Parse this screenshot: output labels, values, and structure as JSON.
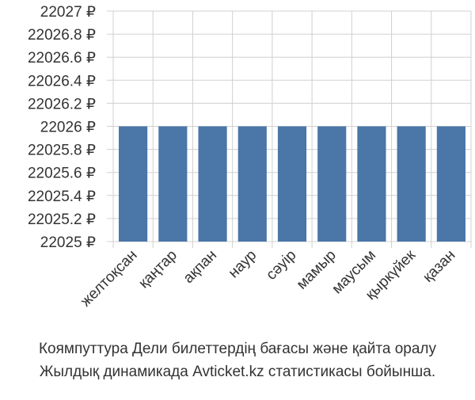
{
  "chart_data": {
    "type": "bar",
    "categories": [
      "желтоқсан",
      "қаңтар",
      "ақпан",
      "наур",
      "сәуір",
      "мамыр",
      "маусым",
      "қыркүйек",
      "қазан"
    ],
    "values": [
      22026,
      22026,
      22026,
      22026,
      22026,
      22026,
      22026,
      22026,
      22026
    ],
    "color": "#4a76a8",
    "ylim": [
      22025,
      22027
    ],
    "yticks": [
      {
        "value": 22025,
        "label": "22025 ₽"
      },
      {
        "value": 22025.2,
        "label": "22025.2 ₽"
      },
      {
        "value": 22025.4,
        "label": "22025.4 ₽"
      },
      {
        "value": 22025.6,
        "label": "22025.6 ₽"
      },
      {
        "value": 22025.8,
        "label": "22025.8 ₽"
      },
      {
        "value": 22026,
        "label": "22026 ₽"
      },
      {
        "value": 22026.2,
        "label": "22026.2 ₽"
      },
      {
        "value": 22026.4,
        "label": "22026.4 ₽"
      },
      {
        "value": 22026.6,
        "label": "22026.6 ₽"
      },
      {
        "value": 22026.8,
        "label": "22026.8 ₽"
      },
      {
        "value": 22027,
        "label": "22027 ₽"
      }
    ],
    "grid": true,
    "caption": [
      "Коямпуттура Дели билеттердің бағасы және қайта оралу",
      "Жылдық динамикада Avticket.kz статистикасы бойынша."
    ]
  }
}
